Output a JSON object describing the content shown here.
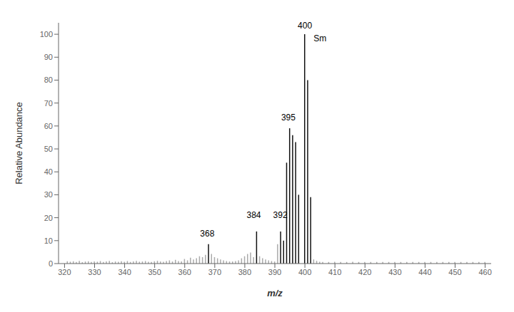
{
  "chart_data": {
    "type": "stem",
    "xlabel": "m/z",
    "ylabel": "Relative Abundance",
    "xlim": [
      318,
      462
    ],
    "ylim": [
      0,
      105
    ],
    "xticks": [
      320,
      330,
      340,
      350,
      360,
      370,
      380,
      390,
      400,
      410,
      420,
      430,
      440,
      450,
      460
    ],
    "yticks": [
      0,
      10,
      20,
      30,
      40,
      50,
      60,
      70,
      80,
      90,
      100
    ],
    "grid": false,
    "series": [
      {
        "color": "#aaaaaa",
        "x": [
          321,
          322,
          323,
          324,
          325,
          326,
          327,
          328,
          329,
          330,
          331,
          332,
          333,
          334,
          335,
          336,
          337,
          338,
          339,
          340,
          341,
          342,
          343,
          344,
          345,
          346,
          347,
          348,
          349,
          350,
          351,
          352,
          353,
          354,
          355,
          356,
          357,
          358,
          359,
          360,
          361,
          362,
          363,
          364,
          365,
          366,
          367,
          369,
          370,
          371,
          372,
          373,
          374,
          375,
          376,
          377,
          378,
          379,
          380,
          381,
          382,
          383,
          385,
          386,
          387,
          388,
          389,
          390,
          391,
          403,
          404,
          405,
          406,
          408,
          410,
          412,
          414,
          416,
          418,
          420,
          422,
          424,
          426,
          428,
          430,
          432,
          434,
          436,
          438,
          440,
          442,
          444,
          446,
          448,
          450,
          452,
          454,
          456,
          458,
          460
        ],
        "values": [
          1.0,
          0.8,
          1.0,
          0.7,
          1.2,
          0.6,
          0.9,
          1.0,
          0.7,
          0.9,
          0.8,
          1.1,
          0.7,
          0.9,
          1.2,
          0.6,
          0.9,
          0.8,
          1.0,
          0.8,
          1.1,
          0.7,
          0.9,
          1.2,
          0.8,
          0.9,
          1.1,
          0.8,
          0.7,
          1.0,
          1.2,
          0.9,
          0.8,
          1.1,
          1.4,
          0.9,
          1.6,
          1.1,
          0.9,
          2.0,
          1.4,
          2.6,
          1.8,
          2.3,
          3.2,
          2.8,
          3.8,
          4.2,
          2.8,
          2.3,
          1.8,
          1.4,
          1.1,
          0.9,
          0.9,
          1.1,
          1.4,
          2.3,
          3.2,
          4.2,
          4.8,
          2.8,
          3.2,
          2.3,
          1.8,
          1.4,
          1.1,
          0.9,
          8.5,
          1.8,
          1.2,
          0.8,
          0.7,
          0.7,
          0.8,
          0.7,
          0.7,
          0.8,
          0.7,
          0.7,
          0.7,
          0.7,
          0.7,
          0.7,
          0.7,
          0.7,
          0.7,
          0.7,
          0.7,
          0.7,
          0.7,
          0.7,
          0.7,
          0.7,
          0.7,
          0.7,
          0.7,
          0.7,
          0.7,
          0.7
        ]
      },
      {
        "color": "#111111",
        "x": [
          368,
          384,
          392,
          393,
          394,
          395,
          396,
          397,
          398,
          400,
          401,
          402
        ],
        "values": [
          8.5,
          14.0,
          14.0,
          10.0,
          44.0,
          59.0,
          56.0,
          53.0,
          30.0,
          100.0,
          80.0,
          29.0
        ]
      }
    ],
    "annotations": [
      {
        "text": "400",
        "x": 400,
        "y": 101.5
      },
      {
        "text": "395",
        "x": 394.5,
        "y": 61.5
      },
      {
        "text": "368",
        "x": 367.5,
        "y": 11.0
      },
      {
        "text": "384",
        "x": 383.0,
        "y": 19.0
      },
      {
        "text": "392",
        "x": 391.8,
        "y": 19.0
      },
      {
        "text": "Sm",
        "x": 405,
        "y": 96
      }
    ]
  }
}
